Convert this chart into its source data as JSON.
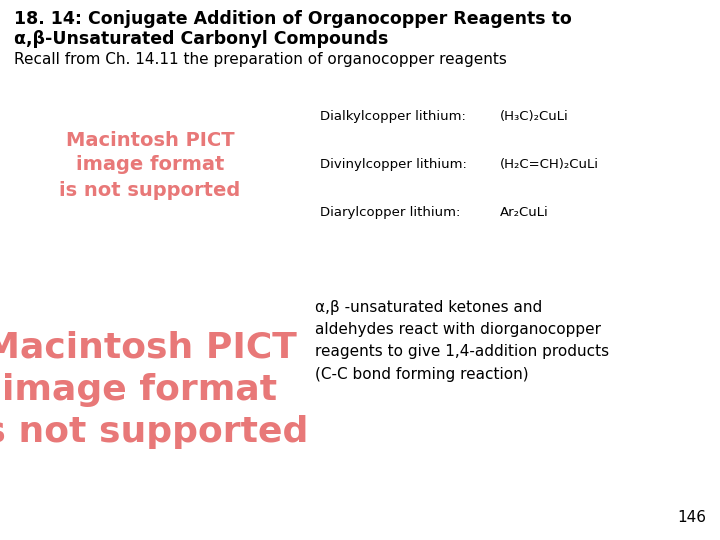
{
  "title_line1": "18. 14: Conjugate Addition of Organocopper Reagents to",
  "title_line2": "α,β-Unsaturated Carbonyl Compounds",
  "subtitle": "Recall from Ch. 14.11 the preparation of organocopper reagents",
  "bg_color": "#ffffff",
  "pict_color": "#e87878",
  "pict1_label": "Macintosh PICT\nimage format\nis not supported",
  "pict2_label": "Macintosh PICT\nimage format\nis not supported",
  "reagents": [
    {
      "label": "Dialkylcopper lithium:",
      "formula": "(H₃C)₂CuLi"
    },
    {
      "label": "Divinylcopper lithium:",
      "formula": "(H₂C=CH)₂CuLi"
    },
    {
      "label": "Diarylcopper lithium:",
      "formula": "Ar₂CuLi"
    }
  ],
  "body_text": "α,β -unsaturated ketones and\naldehydes react with diorganocopper\nreagents to give 1,4-addition products\n(C-C bond forming reaction)",
  "page_number": "146",
  "title_fontsize": 12.5,
  "subtitle_fontsize": 11,
  "reagent_label_fontsize": 9.5,
  "reagent_formula_fontsize": 9.5,
  "pict1_fontsize": 14,
  "pict2_fontsize": 26,
  "body_fontsize": 11,
  "pagenumber_fontsize": 11
}
